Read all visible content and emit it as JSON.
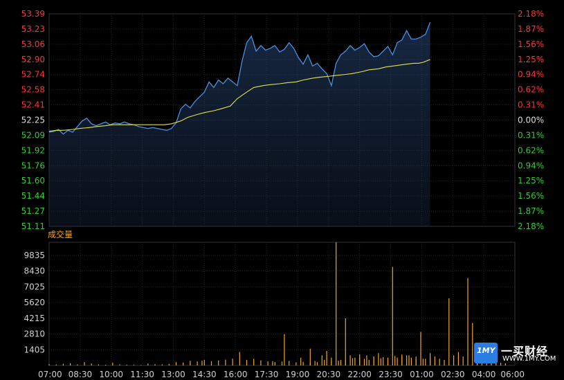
{
  "chart_data": {
    "type": "line",
    "price_panel": {
      "ylim": [
        51.11,
        53.39
      ],
      "left_ticks": [
        "53.39",
        "53.23",
        "53.06",
        "52.90",
        "52.74",
        "52.58",
        "52.41",
        "52.25",
        "52.09",
        "51.92",
        "51.76",
        "51.60",
        "51.44",
        "51.27",
        "51.11"
      ],
      "right_ticks": [
        "2.18%",
        "1.87%",
        "1.56%",
        "1.25%",
        "0.94%",
        "0.62%",
        "0.31%",
        "0.00%",
        "0.31%",
        "0.62%",
        "0.94%",
        "1.25%",
        "1.56%",
        "1.87%",
        "2.18%"
      ],
      "reference": 52.25,
      "series": [
        {
          "name": "price",
          "color": "#4a90e2",
          "values": [
            52.12,
            52.13,
            52.15,
            52.1,
            52.14,
            52.12,
            52.18,
            52.24,
            52.27,
            52.21,
            52.19,
            52.21,
            52.23,
            52.2,
            52.22,
            52.21,
            52.23,
            52.21,
            52.2,
            52.18,
            52.17,
            52.16,
            52.17,
            52.16,
            52.15,
            52.14,
            52.16,
            52.22,
            52.37,
            52.42,
            52.38,
            52.45,
            52.5,
            52.55,
            52.66,
            52.6,
            52.68,
            52.64,
            52.7,
            52.66,
            52.62,
            52.88,
            53.08,
            53.15,
            52.99,
            53.05,
            53.0,
            53.02,
            53.05,
            52.98,
            53.01,
            53.08,
            53.02,
            52.92,
            52.85,
            52.95,
            52.83,
            52.86,
            52.8,
            52.75,
            52.62,
            52.86,
            52.95,
            52.99,
            53.05,
            53.0,
            53.03,
            53.07,
            52.98,
            52.93,
            52.94,
            52.99,
            53.04,
            52.95,
            53.08,
            53.11,
            53.21,
            53.12,
            53.12,
            53.14,
            53.17,
            53.3
          ],
          "x_index": [
            0,
            2,
            4,
            6,
            8,
            10,
            12,
            14,
            16,
            18,
            20,
            22,
            24,
            26,
            28,
            30,
            32,
            34,
            36,
            38,
            40,
            42,
            44,
            46,
            48,
            50,
            52,
            54,
            56,
            58,
            60,
            62,
            64,
            66,
            68,
            70,
            72,
            74,
            76,
            78,
            80,
            82,
            84,
            86,
            88,
            90,
            92,
            94,
            96,
            98,
            100,
            102,
            104,
            106,
            108,
            110,
            112,
            114,
            116,
            118,
            120,
            122,
            124,
            126,
            128,
            130,
            132,
            134,
            136,
            138,
            140,
            142,
            144,
            146,
            148,
            150,
            152,
            154,
            156,
            158,
            160,
            162
          ]
        },
        {
          "name": "average",
          "color": "#e3e34a",
          "values": [
            52.13,
            52.14,
            52.14,
            52.15,
            52.16,
            52.17,
            52.18,
            52.19,
            52.2,
            52.2,
            52.2,
            52.2,
            52.2,
            52.2,
            52.2,
            52.21,
            52.24,
            52.28,
            52.31,
            52.33,
            52.35,
            52.37,
            52.4,
            52.48,
            52.55,
            52.6,
            52.62,
            52.63,
            52.64,
            52.65,
            52.66,
            52.68,
            52.7,
            52.71,
            52.72,
            52.73,
            52.74,
            52.75,
            52.77,
            52.79,
            52.8,
            52.82,
            52.83,
            52.84,
            52.85,
            52.86,
            52.86,
            52.87,
            52.88,
            52.89,
            52.9
          ],
          "x_index": [
            0,
            3,
            6,
            10,
            13,
            17,
            20,
            24,
            27,
            31,
            35,
            38,
            42,
            45,
            49,
            52,
            56,
            59,
            63,
            66,
            70,
            73,
            77,
            80,
            84,
            87,
            91,
            94,
            98,
            101,
            105,
            108,
            112,
            115,
            119,
            122,
            126,
            129,
            133,
            136,
            140,
            143,
            146,
            149,
            152,
            155,
            157,
            159,
            160,
            161,
            162
          ]
        }
      ]
    },
    "volume_panel": {
      "title": "成交量",
      "ylim": [
        0,
        11000
      ],
      "ticks": [
        "9835",
        "8430",
        "7025",
        "5620",
        "4215",
        "2810",
        "1405"
      ],
      "tick_values": [
        9835,
        8430,
        7025,
        5620,
        4215,
        2810,
        1405
      ],
      "bar_color": "#f5a623",
      "bars": [
        [
          0,
          120
        ],
        [
          3,
          80
        ],
        [
          6,
          150
        ],
        [
          9,
          200
        ],
        [
          12,
          90
        ],
        [
          15,
          300
        ],
        [
          18,
          180
        ],
        [
          21,
          100
        ],
        [
          24,
          60
        ],
        [
          27,
          250
        ],
        [
          30,
          90
        ],
        [
          33,
          70
        ],
        [
          36,
          50
        ],
        [
          39,
          40
        ],
        [
          42,
          180
        ],
        [
          45,
          120
        ],
        [
          48,
          100
        ],
        [
          51,
          140
        ],
        [
          54,
          300
        ],
        [
          57,
          260
        ],
        [
          60,
          420
        ],
        [
          63,
          360
        ],
        [
          66,
          500
        ],
        [
          69,
          380
        ],
        [
          72,
          450
        ],
        [
          75,
          520
        ],
        [
          78,
          600
        ],
        [
          81,
          1200
        ],
        [
          84,
          500
        ],
        [
          87,
          600
        ],
        [
          90,
          450
        ],
        [
          93,
          380
        ],
        [
          96,
          300
        ],
        [
          99,
          350
        ],
        [
          102,
          400
        ],
        [
          105,
          280
        ],
        [
          108,
          320
        ],
        [
          111,
          250
        ],
        [
          114,
          300
        ],
        [
          117,
          500
        ],
        [
          120,
          380
        ],
        [
          123,
          430
        ],
        [
          126,
          520
        ],
        [
          129,
          650
        ],
        [
          132,
          720
        ],
        [
          135,
          900
        ],
        [
          138,
          800
        ],
        [
          141,
          650
        ],
        [
          144,
          700
        ],
        [
          147,
          850
        ],
        [
          150,
          980
        ],
        [
          153,
          900
        ],
        [
          156,
          800
        ],
        [
          159,
          600
        ],
        [
          162,
          750
        ],
        [
          65,
          420
        ],
        [
          95,
          380
        ],
        [
          100,
          2800
        ],
        [
          107,
          700
        ],
        [
          111,
          1500
        ],
        [
          113,
          400
        ],
        [
          116,
          900
        ],
        [
          118,
          1300
        ],
        [
          120,
          700
        ],
        [
          122,
          11000
        ],
        [
          124,
          500
        ],
        [
          126,
          4200
        ],
        [
          128,
          900
        ],
        [
          130,
          700
        ],
        [
          132,
          1000
        ],
        [
          134,
          600
        ],
        [
          136,
          500
        ],
        [
          138,
          800
        ],
        [
          140,
          1100
        ],
        [
          142,
          750
        ],
        [
          144,
          600
        ],
        [
          146,
          8800
        ],
        [
          148,
          700
        ],
        [
          150,
          800
        ],
        [
          152,
          900
        ],
        [
          154,
          700
        ],
        [
          156,
          550
        ],
        [
          158,
          3000
        ],
        [
          160,
          600
        ],
        [
          162,
          1100
        ],
        [
          164,
          800
        ],
        [
          166,
          600
        ],
        [
          168,
          500
        ],
        [
          170,
          6000
        ],
        [
          172,
          900
        ],
        [
          174,
          1200
        ],
        [
          176,
          800
        ],
        [
          178,
          7800
        ],
        [
          180,
          3800
        ],
        [
          182,
          1800
        ],
        [
          184,
          900
        ],
        [
          186,
          700
        ],
        [
          188,
          400
        ],
        [
          190,
          300
        ],
        [
          192,
          250
        ],
        [
          194,
          200
        ]
      ]
    },
    "x_axis": {
      "labels": [
        "07:00",
        "08:30",
        "10:00",
        "11:30",
        "13:00",
        "14:30",
        "16:00",
        "17:30",
        "19:00",
        "20:30",
        "22:00",
        "23:30",
        "01:00",
        "02:30",
        "04:00",
        "06:00"
      ],
      "range": [
        0,
        198
      ]
    }
  },
  "watermark": {
    "mark": "1MY",
    "name": "一买财经",
    "sub": "WWW.1MY.COM"
  },
  "colors": {
    "up": "#ff3333",
    "down": "#33cc33",
    "grid": "#262626",
    "axis_text": "#d0d0d0",
    "volume_title": "#ffa500"
  }
}
